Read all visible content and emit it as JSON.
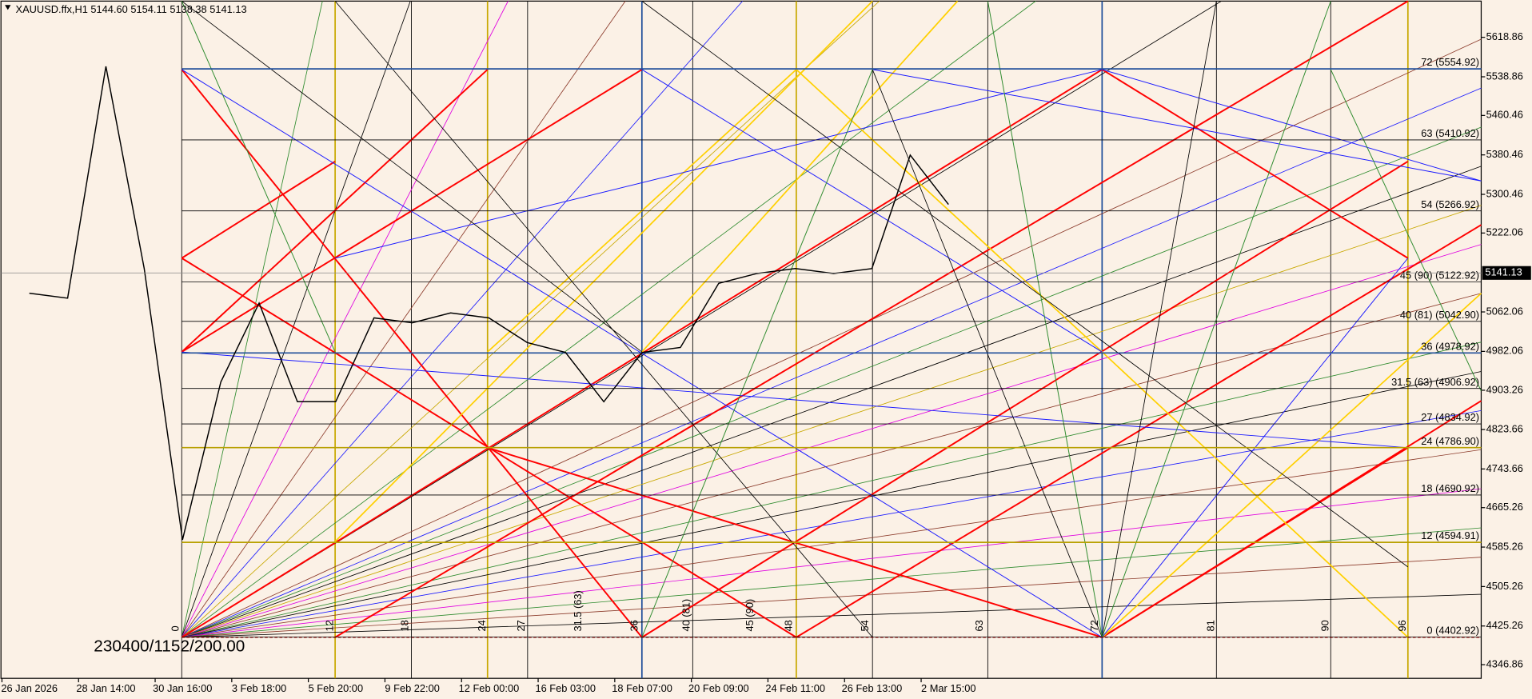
{
  "chart_data": {
    "type": "line",
    "title": "XAUUSD.ffx,H1  5144.60 5154.11 5138.38 5141.13",
    "scale_text": "230400/1152/200.00",
    "categories": [
      "26 Jan 2026",
      null,
      "28 Jan 14:00",
      null,
      "30 Jan 16:00",
      null,
      "3 Feb 18:00",
      null,
      "5 Feb 20:00",
      null,
      "9 Feb 22:00",
      null,
      "12 Feb 00:00",
      null,
      "16 Feb 03:00",
      null,
      "18 Feb 07:00",
      null,
      "20 Feb 09:00",
      null,
      "24 Feb 11:00",
      null,
      "26 Feb 13:00",
      null,
      "2 Mar 15:00"
    ],
    "series": [
      {
        "name": "XAUUSD.ffx,H1",
        "color": "#000000",
        "values": [
          5100,
          5090,
          5560,
          5150,
          4600,
          4920,
          5080,
          4880,
          4880,
          5050,
          5040,
          5060,
          5050,
          5000,
          4980,
          4880,
          4980,
          4990,
          5120,
          5140,
          5150,
          5140,
          5150,
          5380,
          5280
        ]
      }
    ],
    "ylim": [
      4319.1,
      5692.3
    ],
    "yticks": [
      4346.86,
      4425.26,
      4505.26,
      4585.26,
      4665.26,
      4743.66,
      4823.66,
      4903.26,
      4982.06,
      5062.06,
      5222.06,
      5300.46,
      5380.46,
      5460.46,
      5538.86,
      5618.86
    ],
    "last_price": 5141.13,
    "levels": [
      {
        "label": "72 (5554.92)",
        "value": 5554.92,
        "color": "#1f4e9a"
      },
      {
        "label": "63 (5410.92)",
        "value": 5410.92,
        "color": "#000000"
      },
      {
        "label": "54 (5266.92)",
        "value": 5266.92,
        "color": "#000000"
      },
      {
        "label": "45 (90) (5122.92)",
        "value": 5122.92,
        "color": "#000000"
      },
      {
        "label": "40 (81) (5042.90)",
        "value": 5042.9,
        "color": "#000000"
      },
      {
        "label": "36 (4978.92)",
        "value": 4978.92,
        "color": "#1f4e9a"
      },
      {
        "label": "31.5 (63) (4906.92)",
        "value": 4906.92,
        "color": "#000000"
      },
      {
        "label": "27 (4834.92)",
        "value": 4834.92,
        "color": "#000000"
      },
      {
        "label": "24 (4786.90)",
        "value": 4786.9,
        "color": "#b8a000"
      },
      {
        "label": "18 (4690.92)",
        "value": 4690.92,
        "color": "#000000"
      },
      {
        "label": "12 (4594.91)",
        "value": 4594.91,
        "color": "#b8a000"
      },
      {
        "label": "0 (4402.92)",
        "value": 4402.92,
        "color": "#000000"
      }
    ],
    "time_labels": [
      "0",
      "12",
      "18",
      "24",
      "27",
      "31.5 (63)",
      "36",
      "40 (81)",
      "45 (90)",
      "48",
      "54",
      "63",
      "72",
      "81",
      "90",
      "96"
    ]
  }
}
